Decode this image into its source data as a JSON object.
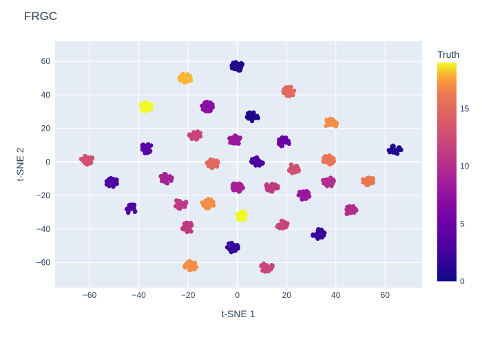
{
  "chart_data": {
    "type": "scatter",
    "title": "FRGC",
    "xlabel": "t-SNE 1",
    "ylabel": "t-SNE 2",
    "xlim": [
      -74,
      75
    ],
    "ylim": [
      -75,
      72
    ],
    "xticks": [
      -60,
      -40,
      -20,
      0,
      20,
      40,
      60
    ],
    "yticks": [
      -60,
      -40,
      -20,
      0,
      20,
      40,
      60
    ],
    "grid": true,
    "colorbar": {
      "title": "Truth",
      "min": 0,
      "max": 19,
      "ticks": [
        0,
        5,
        10,
        15
      ],
      "colorscale": "plasma"
    },
    "clusters": [
      {
        "x": 0,
        "y": 57,
        "value": 1
      },
      {
        "x": -21,
        "y": 50,
        "value": 18
      },
      {
        "x": 21,
        "y": 42,
        "value": 15
      },
      {
        "x": -37,
        "y": 33,
        "value": 19
      },
      {
        "x": -12,
        "y": 33,
        "value": 7
      },
      {
        "x": 6,
        "y": 27,
        "value": 1
      },
      {
        "x": 38,
        "y": 23,
        "value": 17
      },
      {
        "x": -17,
        "y": 16,
        "value": 12
      },
      {
        "x": -1,
        "y": 13,
        "value": 8
      },
      {
        "x": 19,
        "y": 12,
        "value": 5
      },
      {
        "x": -37,
        "y": 8,
        "value": 4
      },
      {
        "x": 64,
        "y": 7,
        "value": 1
      },
      {
        "x": -61,
        "y": 1,
        "value": 13
      },
      {
        "x": -10,
        "y": -1,
        "value": 15
      },
      {
        "x": 8,
        "y": 0,
        "value": 3
      },
      {
        "x": 23,
        "y": -4,
        "value": 13
      },
      {
        "x": 37,
        "y": 1,
        "value": 16
      },
      {
        "x": -29,
        "y": -10,
        "value": 9
      },
      {
        "x": -51,
        "y": -12,
        "value": 3
      },
      {
        "x": 0,
        "y": -15,
        "value": 9
      },
      {
        "x": 14,
        "y": -15,
        "value": 11
      },
      {
        "x": 37,
        "y": -12,
        "value": 10
      },
      {
        "x": 53,
        "y": -11,
        "value": 16
      },
      {
        "x": 27,
        "y": -20,
        "value": 8
      },
      {
        "x": -12,
        "y": -25,
        "value": 17
      },
      {
        "x": -23,
        "y": -25,
        "value": 11
      },
      {
        "x": -43,
        "y": -28,
        "value": 3
      },
      {
        "x": 46,
        "y": -29,
        "value": 10
      },
      {
        "x": 2,
        "y": -32,
        "value": 19
      },
      {
        "x": 18,
        "y": -37,
        "value": 12
      },
      {
        "x": -20,
        "y": -39,
        "value": 11
      },
      {
        "x": 33,
        "y": -43,
        "value": 2
      },
      {
        "x": -2,
        "y": -51,
        "value": 2
      },
      {
        "x": -19,
        "y": -62,
        "value": 17
      },
      {
        "x": 12,
        "y": -63,
        "value": 12
      }
    ]
  }
}
